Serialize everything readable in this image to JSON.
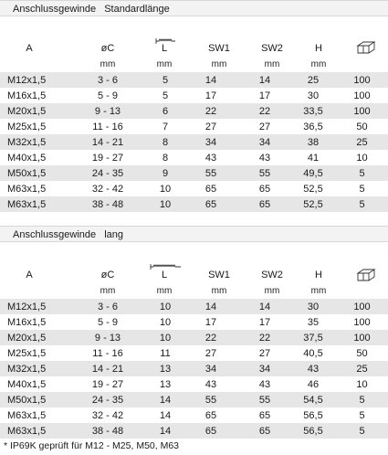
{
  "columns": [
    "A",
    "øC",
    "L",
    "SW1",
    "SW2",
    "H"
  ],
  "units": [
    "mm",
    "mm",
    "mm",
    "mm",
    "mm"
  ],
  "icons": {
    "thread": "thread-length-icon",
    "box": "package-box-icon"
  },
  "sections": [
    {
      "title_a": "Anschlussgewinde",
      "title_b": "Standardlänge",
      "rows": [
        [
          "M12x1,5",
          "3 - 6",
          "5",
          "14",
          "14",
          "25",
          "100"
        ],
        [
          "M16x1,5",
          "5 - 9",
          "5",
          "17",
          "17",
          "30",
          "100"
        ],
        [
          "M20x1,5",
          "9 - 13",
          "6",
          "22",
          "22",
          "33,5",
          "100"
        ],
        [
          "M25x1,5",
          "11 - 16",
          "7",
          "27",
          "27",
          "36,5",
          "50"
        ],
        [
          "M32x1,5",
          "14 - 21",
          "8",
          "34",
          "34",
          "38",
          "25"
        ],
        [
          "M40x1,5",
          "19 - 27",
          "8",
          "43",
          "43",
          "41",
          "10"
        ],
        [
          "M50x1,5",
          "24 - 35",
          "9",
          "55",
          "55",
          "49,5",
          "5"
        ],
        [
          "M63x1,5",
          "32 - 42",
          "10",
          "65",
          "65",
          "52,5",
          "5"
        ],
        [
          "M63x1,5",
          "38 - 48",
          "10",
          "65",
          "65",
          "52,5",
          "5"
        ]
      ]
    },
    {
      "title_a": "Anschlussgewinde",
      "title_b": "lang",
      "rows": [
        [
          "M12x1,5",
          "3 - 6",
          "10",
          "14",
          "14",
          "30",
          "100"
        ],
        [
          "M16x1,5",
          "5 - 9",
          "10",
          "17",
          "17",
          "35",
          "100"
        ],
        [
          "M20x1,5",
          "9 - 13",
          "10",
          "22",
          "22",
          "37,5",
          "100"
        ],
        [
          "M25x1,5",
          "11 - 16",
          "11",
          "27",
          "27",
          "40,5",
          "50"
        ],
        [
          "M32x1,5",
          "14 - 21",
          "13",
          "34",
          "34",
          "43",
          "25"
        ],
        [
          "M40x1,5",
          "19 - 27",
          "13",
          "43",
          "43",
          "46",
          "10"
        ],
        [
          "M50x1,5",
          "24 - 35",
          "14",
          "55",
          "55",
          "54,5",
          "5"
        ],
        [
          "M63x1,5",
          "32 - 42",
          "14",
          "65",
          "65",
          "56,5",
          "5"
        ],
        [
          "M63x1,5",
          "38 - 48",
          "14",
          "65",
          "65",
          "56,5",
          "5"
        ]
      ]
    }
  ],
  "footnote": "* IP69K geprüft für M12 - M25, M50, M63"
}
